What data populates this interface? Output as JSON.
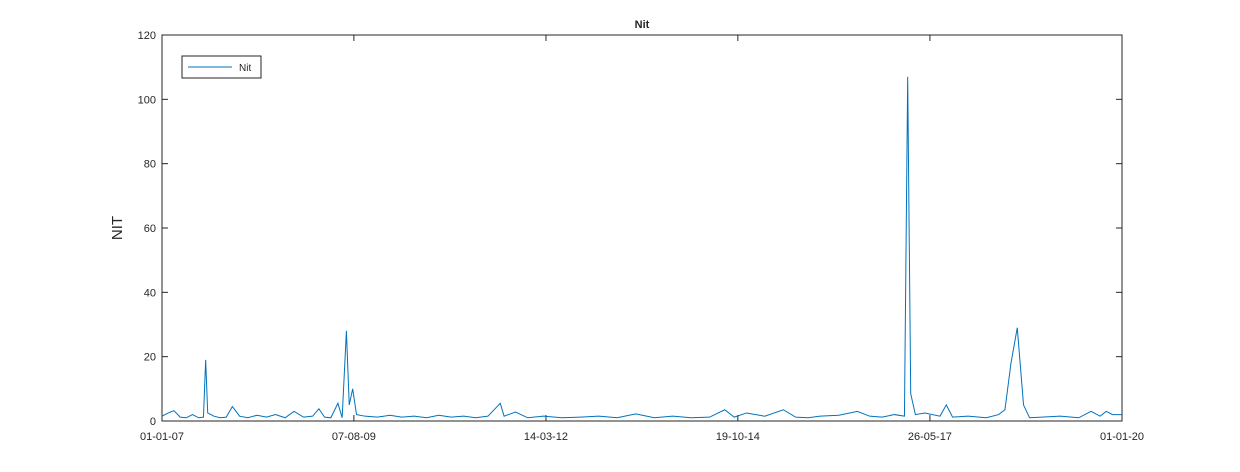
{
  "chart_data": {
    "type": "line",
    "title": "Nit",
    "y_label": "NIT",
    "x": [
      "2007-01-01",
      "2007-02-01",
      "2007-03-01",
      "2007-04-01",
      "2007-05-01",
      "2007-06-01",
      "2007-07-01",
      "2007-07-25",
      "2007-08-05",
      "2007-08-15",
      "2007-09-15",
      "2007-10-15",
      "2007-11-15",
      "2007-12-15",
      "2008-01-20",
      "2008-03-01",
      "2008-04-15",
      "2008-06-01",
      "2008-07-15",
      "2008-09-01",
      "2008-10-15",
      "2008-12-01",
      "2009-01-15",
      "2009-02-15",
      "2009-03-15",
      "2009-04-15",
      "2009-05-20",
      "2009-06-10",
      "2009-07-01",
      "2009-07-15",
      "2009-08-01",
      "2009-08-20",
      "2009-10-01",
      "2009-12-01",
      "2010-02-01",
      "2010-04-01",
      "2010-06-01",
      "2010-08-01",
      "2010-10-01",
      "2010-12-01",
      "2011-02-01",
      "2011-04-01",
      "2011-06-01",
      "2011-08-01",
      "2011-08-20",
      "2011-10-15",
      "2011-12-15",
      "2012-03-01",
      "2012-06-01",
      "2012-09-01",
      "2012-12-01",
      "2013-03-01",
      "2013-06-01",
      "2013-09-01",
      "2013-12-01",
      "2014-03-01",
      "2014-06-01",
      "2014-08-15",
      "2014-10-01",
      "2014-12-01",
      "2015-03-01",
      "2015-06-01",
      "2015-08-01",
      "2015-10-01",
      "2015-12-01",
      "2016-03-01",
      "2016-06-01",
      "2016-08-01",
      "2016-10-01",
      "2016-12-01",
      "2017-01-20",
      "2017-02-05",
      "2017-02-20",
      "2017-03-15",
      "2017-05-01",
      "2017-07-15",
      "2017-08-15",
      "2017-09-15",
      "2017-12-01",
      "2018-03-01",
      "2018-05-01",
      "2018-06-01",
      "2018-07-01",
      "2018-08-01",
      "2018-09-01",
      "2018-10-01",
      "2018-12-01",
      "2019-03-01",
      "2019-06-01",
      "2019-08-01",
      "2019-09-15",
      "2019-10-15",
      "2019-11-15",
      "2020-01-01"
    ],
    "series": [
      {
        "name": "Nit",
        "color": "#0072bd",
        "values": [
          1.5,
          2.5,
          3.2,
          1.2,
          1.0,
          2.0,
          1.0,
          1.2,
          19,
          2.5,
          1.5,
          1.0,
          1.2,
          4.5,
          1.5,
          1.0,
          1.8,
          1.2,
          2.0,
          1.0,
          3.0,
          1.2,
          1.5,
          3.8,
          1.2,
          1.0,
          5.5,
          1.0,
          28,
          5,
          10,
          2.0,
          1.5,
          1.2,
          1.8,
          1.2,
          1.5,
          1.0,
          1.8,
          1.2,
          1.5,
          1.0,
          1.5,
          5.5,
          1.5,
          2.8,
          1.0,
          1.5,
          1.0,
          1.2,
          1.5,
          1.0,
          2.2,
          1.0,
          1.5,
          1.0,
          1.2,
          3.5,
          1.2,
          2.5,
          1.5,
          3.5,
          1.2,
          1.0,
          1.5,
          1.8,
          3.0,
          1.5,
          1.2,
          2.0,
          1.5,
          107,
          8.5,
          2.0,
          2.5,
          1.5,
          5.0,
          1.2,
          1.5,
          1.0,
          2.0,
          3.5,
          18,
          29,
          5,
          1.0,
          1.2,
          1.5,
          1.0,
          3.0,
          1.5,
          3.0,
          2.0,
          2.0
        ]
      }
    ],
    "xlim": [
      "2007-01-01",
      "2020-01-01"
    ],
    "xticks": [
      {
        "value": "2007-01-01",
        "label": "01-01-07"
      },
      {
        "value": "2009-08-07",
        "label": "07-08-09"
      },
      {
        "value": "2012-03-14",
        "label": "14-03-12"
      },
      {
        "value": "2014-10-19",
        "label": "19-10-14"
      },
      {
        "value": "2017-05-26",
        "label": "26-05-17"
      },
      {
        "value": "2020-01-01",
        "label": "01-01-20"
      }
    ],
    "ylim": [
      0,
      120
    ],
    "yticks": [
      0,
      20,
      40,
      60,
      80,
      100,
      120
    ],
    "legend": "upper left"
  }
}
